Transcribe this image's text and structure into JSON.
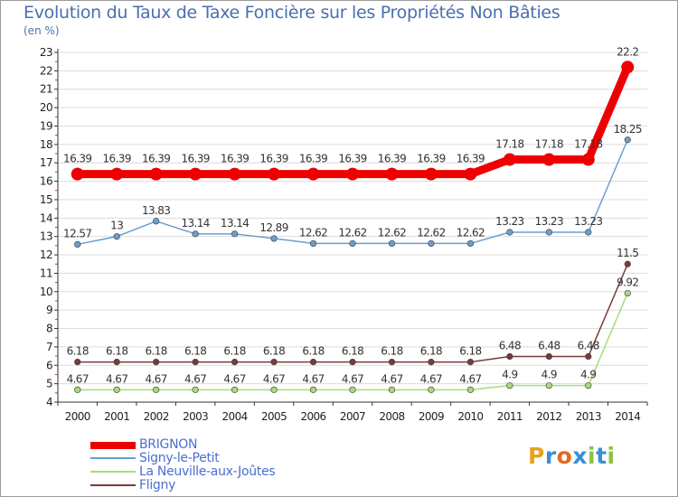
{
  "title": "Evolution du Taux de Taxe Foncière sur les Propriétés Non Bâties",
  "unit_label": "(en %)",
  "brand": {
    "letters": [
      "P",
      "r",
      "o",
      "x",
      "i",
      "t",
      "i"
    ],
    "colors": [
      "#e8a21c",
      "#3c8fd6",
      "#e46a1c",
      "#3c8fd6",
      "#8ac43f",
      "#3c8fd6",
      "#8ac43f"
    ]
  },
  "chart_data": {
    "type": "line",
    "title": "Evolution du Taux de Taxe Foncière sur les Propriétés Non Bâties",
    "ylabel": "(en %)",
    "xlabel": "",
    "x": [
      "2000",
      "2001",
      "2002",
      "2003",
      "2004",
      "2005",
      "2006",
      "2007",
      "2008",
      "2009",
      "2010",
      "2011",
      "2012",
      "2013",
      "2014"
    ],
    "ylim": [
      4,
      23
    ],
    "yticks": [
      4,
      5,
      6,
      7,
      8,
      9,
      10,
      11,
      12,
      13,
      14,
      15,
      16,
      17,
      18,
      19,
      20,
      21,
      22,
      23
    ],
    "series": [
      {
        "name": "BRIGNON",
        "color": "#ee0000",
        "values": [
          16.39,
          16.39,
          16.39,
          16.39,
          16.39,
          16.39,
          16.39,
          16.39,
          16.39,
          16.39,
          16.39,
          17.18,
          17.18,
          17.18,
          22.2
        ],
        "labels": [
          "16.39",
          "16.39",
          "16.39",
          "16.39",
          "16.39",
          "16.39",
          "16.39",
          "16.39",
          "16.39",
          "16.39",
          "16.39",
          "17.18",
          "17.18",
          "17.18",
          "22.2"
        ]
      },
      {
        "name": "Signy-le-Petit",
        "color": "#6a9fd0",
        "values": [
          12.57,
          13,
          13.83,
          13.14,
          13.14,
          12.89,
          12.62,
          12.62,
          12.62,
          12.62,
          12.62,
          13.23,
          13.23,
          13.23,
          18.25
        ],
        "labels": [
          "12.57",
          "13",
          "13.83",
          "13.14",
          "13.14",
          "12.89",
          "12.62",
          "12.62",
          "12.62",
          "12.62",
          "12.62",
          "13.23",
          "13.23",
          "13.23",
          "18.25"
        ]
      },
      {
        "name": "La Neuville-aux-Joûtes",
        "color": "#a6dc7a",
        "values": [
          4.67,
          4.67,
          4.67,
          4.67,
          4.67,
          4.67,
          4.67,
          4.67,
          4.67,
          4.67,
          4.67,
          4.9,
          4.9,
          4.9,
          9.92
        ],
        "labels": [
          "4.67",
          "4.67",
          "4.67",
          "4.67",
          "4.67",
          "4.67",
          "4.67",
          "4.67",
          "4.67",
          "4.67",
          "4.67",
          "4.9",
          "4.9",
          "4.9",
          "9.92"
        ]
      },
      {
        "name": "Fligny",
        "color": "#7a3a3a",
        "values": [
          6.18,
          6.18,
          6.18,
          6.18,
          6.18,
          6.18,
          6.18,
          6.18,
          6.18,
          6.18,
          6.18,
          6.48,
          6.48,
          6.48,
          11.5
        ],
        "labels": [
          "6.18",
          "6.18",
          "6.18",
          "6.18",
          "6.18",
          "6.18",
          "6.18",
          "6.18",
          "6.18",
          "6.18",
          "6.18",
          "6.48",
          "6.48",
          "6.48",
          "11.5"
        ]
      }
    ]
  }
}
